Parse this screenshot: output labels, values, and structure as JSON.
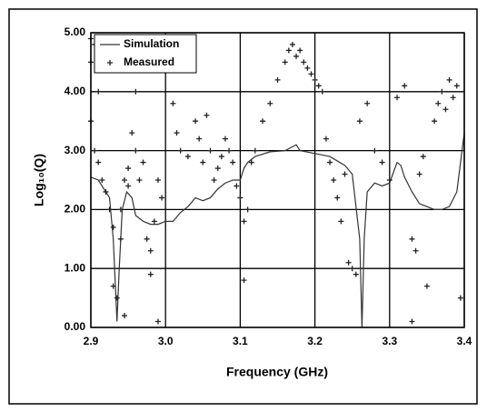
{
  "chart_data": {
    "type": "line-scatter",
    "x_label": "Frequency (GHz)",
    "y_label": "Log₁₀(Q)",
    "xlim": [
      2.9,
      3.4
    ],
    "ylim": [
      0,
      5
    ],
    "xticks": [
      2.9,
      {
        "value": 3,
        "label": "3.0"
      },
      3.1,
      3.2,
      3.3,
      3.4
    ],
    "yticks": [
      {
        "value": 0,
        "label": "0.00"
      },
      {
        "value": 1,
        "label": "1.00"
      },
      {
        "value": 2,
        "label": "2.00"
      },
      {
        "value": 3,
        "label": "3.00"
      },
      {
        "value": 4,
        "label": "4.00"
      },
      {
        "value": 5,
        "label": "5.00"
      }
    ],
    "grid": true,
    "legend": "upper left",
    "series": [
      {
        "name": "Simulation",
        "kind": "line",
        "color": "#333333",
        "x": [
          2.9,
          2.91,
          2.92,
          2.925,
          2.93,
          2.935,
          2.938,
          2.942,
          2.948,
          2.955,
          2.96,
          2.97,
          2.98,
          2.99,
          3.0,
          3.01,
          3.02,
          3.03,
          3.04,
          3.05,
          3.06,
          3.07,
          3.08,
          3.09,
          3.1,
          3.105,
          3.11,
          3.12,
          3.14,
          3.16,
          3.175,
          3.18,
          3.2,
          3.22,
          3.24,
          3.25,
          3.26,
          3.263,
          3.266,
          3.27,
          3.28,
          3.29,
          3.3,
          3.31,
          3.315,
          3.32,
          3.33,
          3.34,
          3.35,
          3.36,
          3.37,
          3.38,
          3.39,
          3.4
        ],
        "values": [
          2.55,
          2.5,
          2.3,
          2.2,
          1.5,
          0.1,
          1.0,
          2.0,
          2.3,
          2.2,
          1.9,
          1.8,
          1.75,
          1.75,
          1.8,
          1.8,
          1.95,
          2.05,
          2.2,
          2.15,
          2.2,
          2.35,
          2.45,
          2.5,
          2.5,
          2.7,
          2.8,
          2.9,
          2.98,
          3.0,
          3.1,
          3.0,
          2.95,
          2.9,
          2.75,
          2.6,
          1.5,
          0.0,
          1.5,
          2.3,
          2.45,
          2.4,
          2.45,
          2.8,
          2.75,
          2.55,
          2.3,
          2.1,
          2.05,
          2.0,
          2.0,
          2.05,
          2.3,
          3.3
        ]
      },
      {
        "name": "Measured",
        "kind": "scatter",
        "color": "#222222",
        "x": [
          2.9,
          2.9,
          2.905,
          2.9,
          2.905,
          2.91,
          2.91,
          2.915,
          2.92,
          2.925,
          2.93,
          2.93,
          2.935,
          2.94,
          2.94,
          2.945,
          2.95,
          2.95,
          2.955,
          2.96,
          2.96,
          2.965,
          2.97,
          2.975,
          2.98,
          2.98,
          2.985,
          2.99,
          2.995,
          2.99,
          2.945,
          3.01,
          3.015,
          3.02,
          3.03,
          3.04,
          3.045,
          3.05,
          3.055,
          3.06,
          3.065,
          3.07,
          3.075,
          3.08,
          3.085,
          3.09,
          3.095,
          3.1,
          3.105,
          3.11,
          3.105,
          3.115,
          3.12,
          3.13,
          3.14,
          3.15,
          3.16,
          3.165,
          3.17,
          3.175,
          3.18,
          3.185,
          3.19,
          3.195,
          3.2,
          3.205,
          3.21,
          3.215,
          3.22,
          3.225,
          3.23,
          3.235,
          3.24,
          3.245,
          3.25,
          3.255,
          3.26,
          3.27,
          3.28,
          3.29,
          3.3,
          3.31,
          3.32,
          3.33,
          3.335,
          3.33,
          3.34,
          3.345,
          3.35,
          3.36,
          3.365,
          3.37,
          3.375,
          3.38,
          3.385,
          3.39,
          3.395
        ],
        "values": [
          4.9,
          4.5,
          4.8,
          3.5,
          3.0,
          4.0,
          2.8,
          2.5,
          2.3,
          2.0,
          1.7,
          0.7,
          0.5,
          1.5,
          2.0,
          2.5,
          2.7,
          2.4,
          3.3,
          4.0,
          3.0,
          2.5,
          2.8,
          1.5,
          1.3,
          0.9,
          1.8,
          2.5,
          2.2,
          0.1,
          0.2,
          3.8,
          3.3,
          3.0,
          2.9,
          3.5,
          3.2,
          2.8,
          3.6,
          3.0,
          2.5,
          2.7,
          2.9,
          3.2,
          3.0,
          2.8,
          2.4,
          2.2,
          1.8,
          2.0,
          0.8,
          2.8,
          3.0,
          3.5,
          3.8,
          4.2,
          4.5,
          4.7,
          4.8,
          4.6,
          4.7,
          4.5,
          4.4,
          4.3,
          4.2,
          4.1,
          4.0,
          3.2,
          2.8,
          2.5,
          2.2,
          1.8,
          2.6,
          1.1,
          1.0,
          0.9,
          3.5,
          3.8,
          3.0,
          2.8,
          2.5,
          3.9,
          4.1,
          1.5,
          1.3,
          0.1,
          2.6,
          2.9,
          0.7,
          3.5,
          3.8,
          4.0,
          3.7,
          4.2,
          3.9,
          4.1,
          0.5
        ]
      }
    ]
  }
}
